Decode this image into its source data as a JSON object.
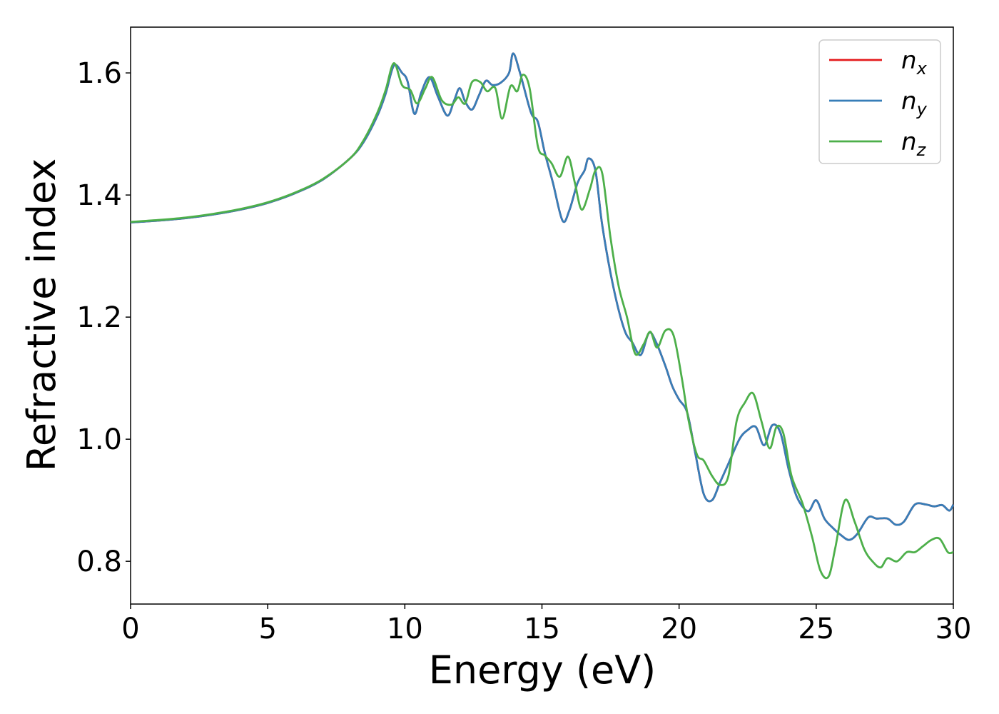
{
  "chart_data": {
    "type": "line",
    "xlabel": "Energy (eV)",
    "ylabel": "Refractive index",
    "xlim": [
      0,
      30
    ],
    "ylim": [
      0.73,
      1.675
    ],
    "xticks": [
      0,
      5,
      10,
      15,
      20,
      25,
      30
    ],
    "yticks": [
      0.8,
      1.0,
      1.2,
      1.4,
      1.6
    ],
    "xtick_labels": [
      "0",
      "5",
      "10",
      "15",
      "20",
      "25",
      "30"
    ],
    "ytick_labels": [
      "0.8",
      "1.0",
      "1.2",
      "1.4",
      "1.6"
    ],
    "legend_position": "top-right",
    "grid": false,
    "series": [
      {
        "name": "n_x",
        "label_base": "n",
        "label_sub": "x",
        "color": "#e41a1c",
        "x": [
          0,
          1,
          2,
          3,
          4,
          5,
          6,
          7,
          8,
          8.5,
          9,
          9.3,
          9.6,
          9.9,
          10.1,
          10.35,
          10.6,
          10.9,
          11.2,
          11.55,
          11.8,
          12.0,
          12.2,
          12.45,
          12.7,
          12.95,
          13.2,
          13.5,
          13.8,
          13.95,
          14.2,
          14.6,
          14.85,
          15.1,
          15.4,
          15.75,
          16.0,
          16.3,
          16.55,
          16.7,
          16.95,
          17.2,
          17.6,
          18.0,
          18.3,
          18.6,
          18.9,
          19.15,
          19.5,
          19.75,
          20.0,
          20.3,
          20.6,
          20.9,
          21.2,
          21.5,
          21.8,
          22.2,
          22.5,
          22.8,
          23.1,
          23.4,
          23.7,
          24.0,
          24.3,
          24.7,
          25.0,
          25.3,
          25.6,
          25.9,
          26.2,
          26.5,
          26.9,
          27.2,
          27.6,
          27.9,
          28.2,
          28.6,
          29.0,
          29.3,
          29.6,
          29.85,
          30.0
        ],
        "y": [
          1.355,
          1.358,
          1.362,
          1.368,
          1.376,
          1.387,
          1.403,
          1.425,
          1.46,
          1.487,
          1.53,
          1.566,
          1.612,
          1.6,
          1.586,
          1.533,
          1.568,
          1.593,
          1.562,
          1.53,
          1.555,
          1.575,
          1.553,
          1.54,
          1.563,
          1.587,
          1.58,
          1.584,
          1.6,
          1.632,
          1.6,
          1.535,
          1.52,
          1.47,
          1.42,
          1.358,
          1.375,
          1.42,
          1.44,
          1.46,
          1.44,
          1.35,
          1.25,
          1.18,
          1.158,
          1.138,
          1.174,
          1.16,
          1.12,
          1.087,
          1.065,
          1.043,
          0.975,
          0.91,
          0.9,
          0.93,
          0.96,
          1.0,
          1.015,
          1.02,
          0.99,
          1.023,
          1.01,
          0.95,
          0.905,
          0.882,
          0.9,
          0.87,
          0.855,
          0.843,
          0.835,
          0.845,
          0.872,
          0.87,
          0.87,
          0.86,
          0.865,
          0.893,
          0.893,
          0.89,
          0.892,
          0.883,
          0.893
        ]
      },
      {
        "name": "n_y",
        "label_base": "n",
        "label_sub": "y",
        "color": "#377eb8",
        "x": [
          0,
          1,
          2,
          3,
          4,
          5,
          6,
          7,
          8,
          8.5,
          9,
          9.3,
          9.6,
          9.9,
          10.1,
          10.35,
          10.6,
          10.9,
          11.2,
          11.55,
          11.8,
          12.0,
          12.2,
          12.45,
          12.7,
          12.95,
          13.2,
          13.5,
          13.8,
          13.95,
          14.2,
          14.6,
          14.85,
          15.1,
          15.4,
          15.75,
          16.0,
          16.3,
          16.55,
          16.7,
          16.95,
          17.2,
          17.6,
          18.0,
          18.3,
          18.6,
          18.9,
          19.15,
          19.5,
          19.75,
          20.0,
          20.3,
          20.6,
          20.9,
          21.2,
          21.5,
          21.8,
          22.2,
          22.5,
          22.8,
          23.1,
          23.4,
          23.7,
          24.0,
          24.3,
          24.7,
          25.0,
          25.3,
          25.6,
          25.9,
          26.2,
          26.5,
          26.9,
          27.2,
          27.6,
          27.9,
          28.2,
          28.6,
          29.0,
          29.3,
          29.6,
          29.85,
          30.0
        ],
        "y": [
          1.355,
          1.358,
          1.362,
          1.368,
          1.376,
          1.387,
          1.403,
          1.425,
          1.46,
          1.487,
          1.53,
          1.566,
          1.612,
          1.6,
          1.586,
          1.533,
          1.568,
          1.593,
          1.562,
          1.53,
          1.555,
          1.575,
          1.553,
          1.54,
          1.563,
          1.587,
          1.58,
          1.584,
          1.6,
          1.632,
          1.6,
          1.535,
          1.52,
          1.47,
          1.42,
          1.358,
          1.375,
          1.42,
          1.44,
          1.46,
          1.44,
          1.35,
          1.25,
          1.18,
          1.158,
          1.138,
          1.174,
          1.16,
          1.12,
          1.087,
          1.065,
          1.043,
          0.975,
          0.91,
          0.9,
          0.93,
          0.96,
          1.0,
          1.015,
          1.02,
          0.99,
          1.023,
          1.01,
          0.95,
          0.905,
          0.882,
          0.9,
          0.87,
          0.855,
          0.843,
          0.835,
          0.845,
          0.872,
          0.87,
          0.87,
          0.86,
          0.865,
          0.893,
          0.893,
          0.89,
          0.892,
          0.883,
          0.893
        ]
      },
      {
        "name": "n_z",
        "label_base": "n",
        "label_sub": "z",
        "color": "#4daf4a",
        "x": [
          0,
          1,
          2,
          3,
          4,
          5,
          6,
          7,
          8,
          8.5,
          9,
          9.3,
          9.6,
          9.9,
          10.2,
          10.45,
          10.75,
          11.0,
          11.35,
          11.7,
          11.95,
          12.2,
          12.45,
          12.75,
          13.0,
          13.3,
          13.55,
          13.85,
          14.1,
          14.3,
          14.55,
          14.85,
          15.1,
          15.35,
          15.65,
          15.95,
          16.2,
          16.45,
          16.75,
          16.95,
          17.2,
          17.5,
          17.8,
          18.1,
          18.4,
          18.7,
          18.95,
          19.2,
          19.5,
          19.8,
          20.1,
          20.35,
          20.65,
          20.9,
          21.2,
          21.5,
          21.8,
          22.1,
          22.4,
          22.7,
          23.0,
          23.3,
          23.55,
          23.8,
          24.1,
          24.5,
          24.85,
          25.15,
          25.45,
          25.7,
          26.05,
          26.4,
          26.75,
          27.05,
          27.35,
          27.6,
          27.95,
          28.3,
          28.6,
          28.9,
          29.2,
          29.5,
          29.8,
          30.0
        ],
        "y": [
          1.356,
          1.359,
          1.363,
          1.369,
          1.377,
          1.388,
          1.404,
          1.426,
          1.46,
          1.49,
          1.535,
          1.572,
          1.616,
          1.58,
          1.572,
          1.55,
          1.575,
          1.593,
          1.555,
          1.548,
          1.56,
          1.55,
          1.585,
          1.585,
          1.57,
          1.575,
          1.525,
          1.578,
          1.57,
          1.597,
          1.575,
          1.48,
          1.465,
          1.452,
          1.43,
          1.463,
          1.42,
          1.376,
          1.41,
          1.44,
          1.435,
          1.33,
          1.25,
          1.2,
          1.14,
          1.155,
          1.176,
          1.15,
          1.178,
          1.17,
          1.1,
          1.03,
          0.975,
          0.965,
          0.94,
          0.925,
          0.94,
          1.03,
          1.06,
          1.075,
          1.03,
          0.985,
          1.02,
          1.01,
          0.94,
          0.895,
          0.84,
          0.785,
          0.775,
          0.823,
          0.9,
          0.865,
          0.82,
          0.8,
          0.79,
          0.805,
          0.8,
          0.815,
          0.815,
          0.825,
          0.835,
          0.837,
          0.815,
          0.815
        ]
      }
    ]
  }
}
